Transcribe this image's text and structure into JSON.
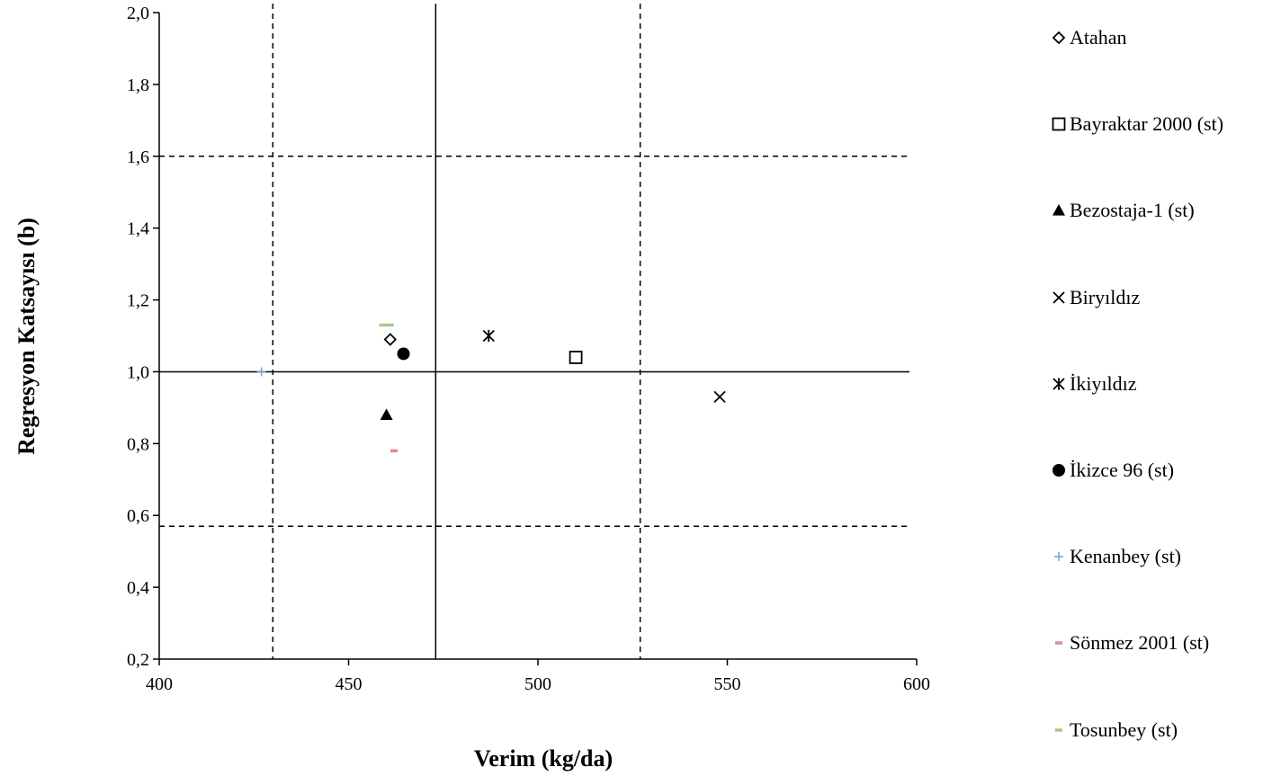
{
  "chart_data": {
    "type": "scatter",
    "xlabel": "Verim (kg/da)",
    "ylabel": "Regresyon Katsayısı (b)",
    "xlim": [
      400,
      600
    ],
    "ylim": [
      0.2,
      2.0
    ],
    "x_ticks": [
      "400",
      "450",
      "500",
      "550",
      "600"
    ],
    "y_ticks": [
      "0,2",
      "0,4",
      "0,6",
      "0,8",
      "1,0",
      "1,2",
      "1,4",
      "1,6",
      "1,8",
      "2,0"
    ],
    "grid": false,
    "legend_position": "right",
    "series": [
      {
        "name": "Atahan",
        "x": 461,
        "y": 1.09,
        "marker": "diamond-open",
        "color": "#000000"
      },
      {
        "name": "Bayraktar 2000 (st)",
        "x": 510,
        "y": 1.04,
        "marker": "square-open",
        "color": "#000000"
      },
      {
        "name": "Bezostaja-1 (st)",
        "x": 460,
        "y": 0.88,
        "marker": "triangle",
        "color": "#000000"
      },
      {
        "name": "Biryıldız",
        "x": 548,
        "y": 0.93,
        "marker": "x",
        "color": "#000000"
      },
      {
        "name": "İkiyıldız",
        "x": 487,
        "y": 1.1,
        "marker": "star",
        "color": "#000000"
      },
      {
        "name": "İkizce 96 (st)",
        "x": 464.5,
        "y": 1.05,
        "marker": "circle",
        "color": "#000000"
      },
      {
        "name": "Kenanbey (st)",
        "x": 427,
        "y": 1.0,
        "marker": "plus",
        "color": "#7f9ecf"
      },
      {
        "name": "Sönmez 2001 (st)",
        "x": 462,
        "y": 0.78,
        "marker": "dash",
        "color": "#e08a8a"
      },
      {
        "name": "Tosunbey (st)",
        "x": 460,
        "y": 1.13,
        "marker": "dash",
        "color": "#a5c98a"
      }
    ],
    "reference_lines": [
      {
        "orientation": "vertical",
        "x": 473,
        "style": "solid"
      },
      {
        "orientation": "horizontal",
        "y": 1.0,
        "style": "solid"
      },
      {
        "orientation": "vertical",
        "x": 430,
        "style": "dashed"
      },
      {
        "orientation": "vertical",
        "x": 527,
        "style": "dashed"
      },
      {
        "orientation": "horizontal",
        "y": 1.6,
        "style": "dashed"
      },
      {
        "orientation": "horizontal",
        "y": 0.57,
        "style": "dashed"
      }
    ]
  }
}
